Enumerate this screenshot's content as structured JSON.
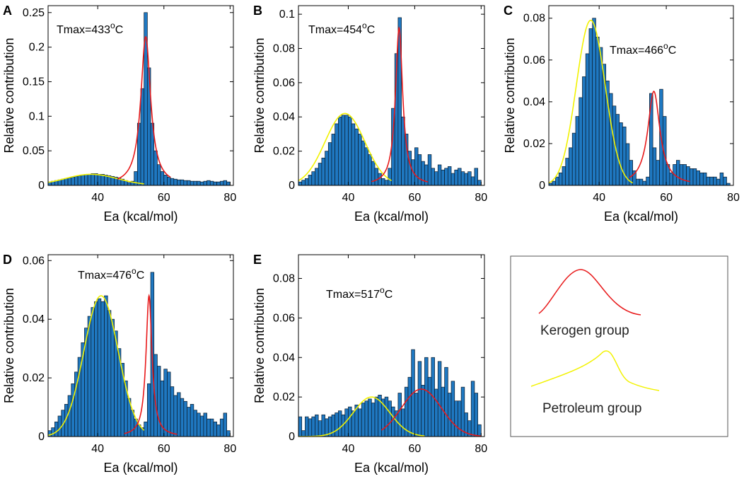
{
  "colors": {
    "bar": "#1f78c1",
    "bar_edge": "#0a1a2a",
    "kerogen": "#e8191a",
    "petroleum": "#f2f200"
  },
  "legend": {
    "kerogen_label": "Kerogen group",
    "petroleum_label": "Petroleum group"
  },
  "chart_data": [
    {
      "panel": "A",
      "type": "bar",
      "annotation_prefix": "Tmax=433",
      "annotation_sup": "o",
      "annotation_suffix": "C",
      "xlabel": "Ea (kcal/mol)",
      "ylabel": "Relative contribution",
      "xlim": [
        25,
        81
      ],
      "ylim": [
        0,
        0.26
      ],
      "xticks": [
        40,
        60,
        80
      ],
      "yticks": [
        0,
        0.05,
        0.1,
        0.15,
        0.2,
        0.25
      ],
      "ytick_labels": [
        "0",
        "0.05",
        "0.1",
        "0.15",
        "0.2",
        "0.25"
      ],
      "x_start": 25,
      "bin_width": 1,
      "values": [
        0.005,
        0.006,
        0.007,
        0.008,
        0.009,
        0.01,
        0.011,
        0.012,
        0.013,
        0.014,
        0.015,
        0.016,
        0.016,
        0.017,
        0.017,
        0.016,
        0.016,
        0.015,
        0.014,
        0.013,
        0.012,
        0.011,
        0.009,
        0.007,
        0.004,
        0.006,
        0.02,
        0.09,
        0.14,
        0.25,
        0.17,
        0.09,
        0.05,
        0.03,
        0.02,
        0.015,
        0.012,
        0.01,
        0.009,
        0.008,
        0.008,
        0.007,
        0.007,
        0.006,
        0.006,
        0.006,
        0.005,
        0.006,
        0.007,
        0.006,
        0.005,
        0.005,
        0.006,
        0.007,
        0.005
      ],
      "kerogen_curve": {
        "type": "lorentz",
        "center": 54.5,
        "amp": 0.215,
        "gamma": 1.8,
        "range": [
          46,
          62
        ]
      },
      "petroleum_curve": {
        "type": "gauss",
        "center": 38,
        "amp": 0.016,
        "sigma": 8,
        "range": [
          25,
          54
        ]
      }
    },
    {
      "panel": "B",
      "type": "bar",
      "annotation_prefix": "Tmax=454",
      "annotation_sup": "o",
      "annotation_suffix": "C",
      "xlabel": "Ea (kcal/mol)",
      "ylabel": "Relative contribution",
      "xlim": [
        25,
        81
      ],
      "ylim": [
        0,
        0.105
      ],
      "xticks": [
        40,
        60,
        80
      ],
      "yticks": [
        0,
        0.02,
        0.04,
        0.06,
        0.08,
        0.1
      ],
      "ytick_labels": [
        "0",
        "0.02",
        "0.04",
        "0.06",
        "0.08",
        "0.1"
      ],
      "x_start": 25,
      "bin_width": 1,
      "values": [
        0.002,
        0.003,
        0.004,
        0.006,
        0.008,
        0.01,
        0.013,
        0.016,
        0.02,
        0.025,
        0.03,
        0.036,
        0.04,
        0.041,
        0.041,
        0.04,
        0.036,
        0.033,
        0.03,
        0.026,
        0.022,
        0.018,
        0.014,
        0.01,
        0.007,
        0.004,
        0.003,
        0.01,
        0.045,
        0.077,
        0.098,
        0.04,
        0.03,
        0.02,
        0.015,
        0.022,
        0.018,
        0.014,
        0.012,
        0.018,
        0.01,
        0.008,
        0.012,
        0.009,
        0.01,
        0.011,
        0.007,
        0.009,
        0.01,
        0.008,
        0.007,
        0.008,
        0.005,
        0.01,
        0.003
      ],
      "kerogen_curve": {
        "type": "lorentz",
        "center": 55.3,
        "amp": 0.092,
        "gamma": 1.3,
        "range": [
          47,
          64
        ]
      },
      "petroleum_curve": {
        "type": "gauss",
        "center": 39,
        "amp": 0.042,
        "sigma": 6,
        "range": [
          25,
          53
        ]
      }
    },
    {
      "panel": "C",
      "type": "bar",
      "annotation_prefix": "Tmax=466",
      "annotation_sup": "o",
      "annotation_suffix": "C",
      "xlabel": "Ea (kcal/mol)",
      "ylabel": "Relative contribution",
      "xlim": [
        25,
        80
      ],
      "ylim": [
        0,
        0.086
      ],
      "xticks": [
        40,
        60,
        80
      ],
      "yticks": [
        0,
        0.02,
        0.04,
        0.06,
        0.08
      ],
      "ytick_labels": [
        "0",
        "0.02",
        "0.04",
        "0.06",
        "0.08"
      ],
      "x_start": 25,
      "bin_width": 1,
      "values": [
        0.001,
        0.002,
        0.004,
        0.006,
        0.009,
        0.013,
        0.018,
        0.025,
        0.033,
        0.042,
        0.052,
        0.063,
        0.075,
        0.08,
        0.071,
        0.066,
        0.058,
        0.05,
        0.044,
        0.038,
        0.034,
        0.03,
        0.028,
        0.02,
        0.012,
        0.007,
        0.003,
        0.003,
        0.002,
        0.004,
        0.044,
        0.018,
        0.012,
        0.046,
        0.033,
        0.01,
        0.006,
        0.01,
        0.012,
        0.01,
        0.01,
        0.009,
        0.008,
        0.008,
        0.007,
        0.006,
        0.006,
        0.004,
        0.004,
        0.004,
        0.003,
        0.006,
        0.004,
        0.001
      ],
      "kerogen_curve": {
        "type": "lorentz",
        "center": 56.3,
        "amp": 0.045,
        "gamma": 2.2,
        "range": [
          49,
          67
        ]
      },
      "petroleum_curve": {
        "type": "gauss",
        "center": 37.5,
        "amp": 0.079,
        "sigma": 4.3,
        "range": [
          25,
          50
        ]
      }
    },
    {
      "panel": "D",
      "type": "bar",
      "annotation_prefix": "Tmax=476",
      "annotation_sup": "o",
      "annotation_suffix": "C",
      "xlabel": "Ea (kcal/mol)",
      "ylabel": "Relative contribution",
      "xlim": [
        25,
        81
      ],
      "ylim": [
        0,
        0.062
      ],
      "xticks": [
        40,
        60,
        80
      ],
      "yticks": [
        0,
        0.02,
        0.04,
        0.06
      ],
      "ytick_labels": [
        "0",
        "0.02",
        "0.04",
        "0.06"
      ],
      "x_start": 25,
      "bin_width": 1,
      "values": [
        0.002,
        0.003,
        0.005,
        0.007,
        0.009,
        0.011,
        0.014,
        0.018,
        0.022,
        0.027,
        0.032,
        0.037,
        0.041,
        0.044,
        0.046,
        0.047,
        0.046,
        0.048,
        0.043,
        0.04,
        0.036,
        0.03,
        0.025,
        0.019,
        0.013,
        0.009,
        0.006,
        0.004,
        0.003,
        0.005,
        0.018,
        0.056,
        0.028,
        0.024,
        0.019,
        0.023,
        0.022,
        0.017,
        0.014,
        0.015,
        0.013,
        0.012,
        0.01,
        0.011,
        0.009,
        0.008,
        0.007,
        0.008,
        0.006,
        0.006,
        0.005,
        0.004,
        0.006,
        0.008,
        0.002
      ],
      "kerogen_curve": {
        "type": "lorentz",
        "center": 55.5,
        "amp": 0.048,
        "gamma": 1.1,
        "range": [
          48,
          64
        ]
      },
      "petroleum_curve": {
        "type": "gauss",
        "center": 41,
        "amp": 0.048,
        "sigma": 5.2,
        "range": [
          25,
          54
        ]
      }
    },
    {
      "panel": "E",
      "type": "bar",
      "annotation_prefix": "Tmax=517",
      "annotation_sup": "o",
      "annotation_suffix": "C",
      "xlabel": "Ea (kcal/mol)",
      "ylabel": "Relative contribution",
      "xlim": [
        25,
        81
      ],
      "ylim": [
        0,
        0.092
      ],
      "xticks": [
        40,
        60,
        80
      ],
      "yticks": [
        0,
        0.02,
        0.04,
        0.06,
        0.08
      ],
      "ytick_labels": [
        "0",
        "0.02",
        "0.04",
        "0.06",
        "0.08"
      ],
      "x_start": 25,
      "bin_width": 1,
      "values": [
        0.01,
        0.003,
        0.01,
        0.009,
        0.01,
        0.011,
        0.008,
        0.011,
        0.009,
        0.01,
        0.011,
        0.012,
        0.013,
        0.011,
        0.014,
        0.015,
        0.013,
        0.016,
        0.014,
        0.017,
        0.018,
        0.019,
        0.017,
        0.02,
        0.021,
        0.019,
        0.02,
        0.018,
        0.015,
        0.013,
        0.022,
        0.014,
        0.025,
        0.03,
        0.044,
        0.022,
        0.038,
        0.026,
        0.04,
        0.03,
        0.04,
        0.024,
        0.038,
        0.025,
        0.035,
        0.022,
        0.028,
        0.018,
        0.018,
        0.025,
        0.012,
        0.008,
        0.028,
        0.022,
        0.006
      ],
      "kerogen_curve": {
        "type": "gauss",
        "center": 62,
        "amp": 0.024,
        "sigma": 6,
        "range": [
          50,
          80
        ]
      },
      "petroleum_curve": {
        "type": "gauss",
        "center": 47,
        "amp": 0.02,
        "sigma": 5.5,
        "range": [
          25,
          63
        ]
      }
    }
  ]
}
